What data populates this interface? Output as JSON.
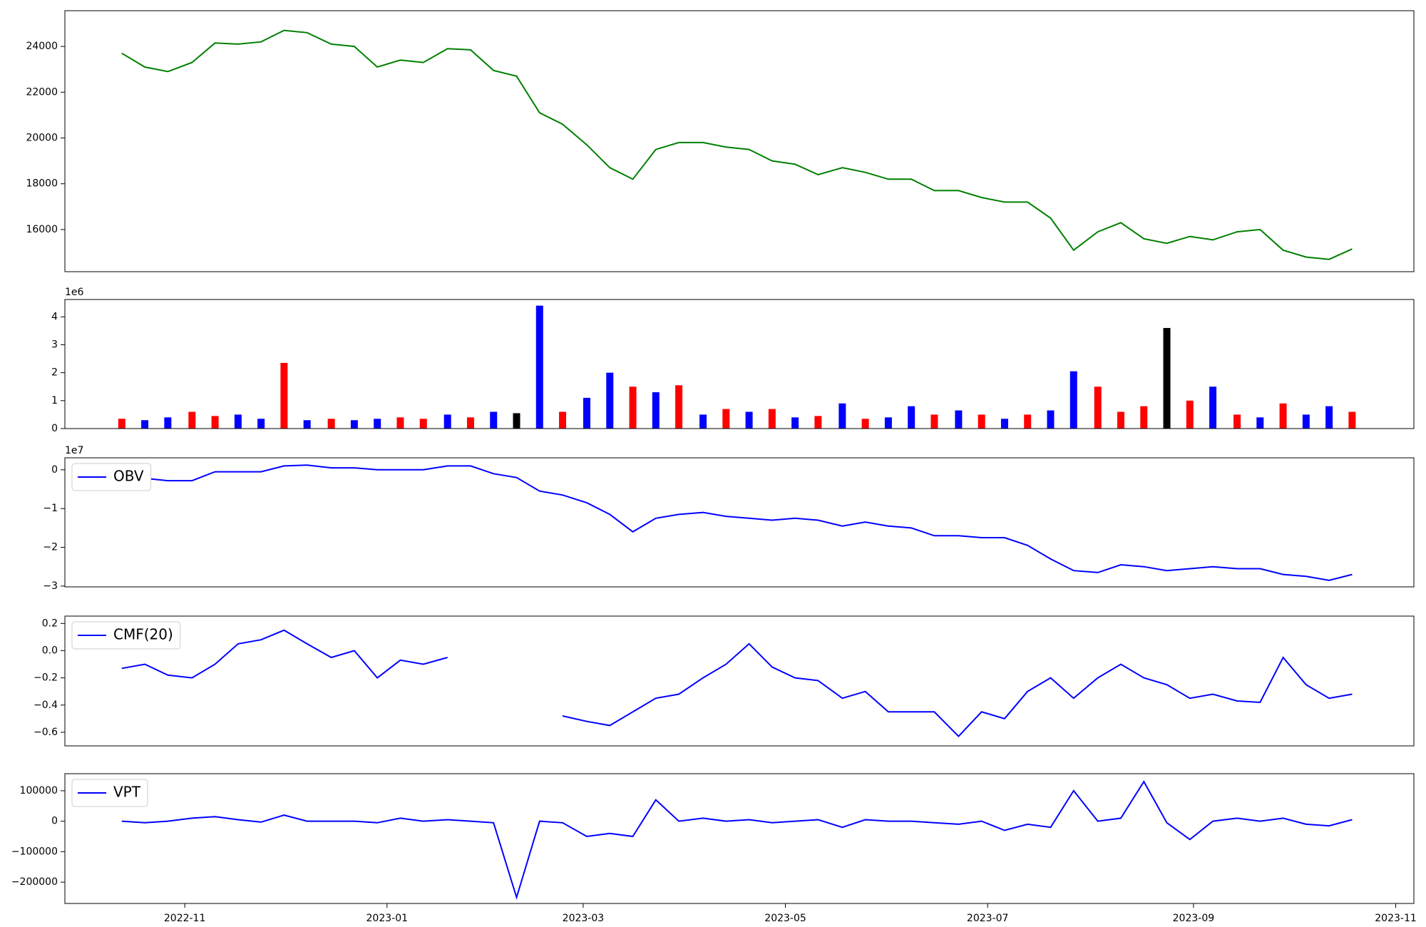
{
  "chart_data": [
    {
      "type": "line",
      "x": [
        2022.781,
        2022.8,
        2022.819,
        2022.839,
        2022.858,
        2022.877,
        2022.896,
        2022.915,
        2022.934,
        2022.954,
        2022.973,
        2022.992,
        2023.011,
        2023.03,
        2023.05,
        2023.069,
        2023.088,
        2023.107,
        2023.126,
        2023.145,
        2023.165,
        2023.184,
        2023.203,
        2023.222,
        2023.241,
        2023.261,
        2023.28,
        2023.299,
        2023.318,
        2023.337,
        2023.356,
        2023.376,
        2023.395,
        2023.414,
        2023.433,
        2023.452,
        2023.472,
        2023.491,
        2023.51,
        2023.529,
        2023.548,
        2023.567,
        2023.587,
        2023.606,
        2023.625,
        2023.644,
        2023.663,
        2023.682,
        2023.702,
        2023.721,
        2023.74,
        2023.759,
        2023.778,
        2023.797
      ],
      "series": [
        {
          "color": "green",
          "values": [
            23700,
            23100,
            22900,
            23300,
            24150,
            24100,
            24200,
            24700,
            24600,
            24100,
            24000,
            23100,
            23400,
            23300,
            23900,
            23850,
            22950,
            22700,
            21100,
            20600,
            19700,
            18700,
            18200,
            19500,
            19800,
            19800,
            19600,
            19500,
            19000,
            18850,
            18400,
            18700,
            18500,
            18200,
            18200,
            17700,
            17700,
            17400,
            17200,
            17200,
            16500,
            15100,
            15900,
            16300,
            15600,
            15400,
            15700,
            15550,
            15900,
            16000,
            15100,
            14800,
            14700,
            15150
          ]
        }
      ],
      "xlim": [
        2022.734,
        2023.848
      ],
      "ylim": [
        14160,
        25560
      ],
      "yticks": [
        16000,
        18000,
        20000,
        22000,
        24000
      ]
    },
    {
      "type": "bar",
      "x": [
        2022.781,
        2022.8,
        2022.819,
        2022.839,
        2022.858,
        2022.877,
        2022.896,
        2022.915,
        2022.934,
        2022.954,
        2022.973,
        2022.992,
        2023.011,
        2023.03,
        2023.05,
        2023.069,
        2023.088,
        2023.107,
        2023.126,
        2023.145,
        2023.165,
        2023.184,
        2023.203,
        2023.222,
        2023.241,
        2023.261,
        2023.28,
        2023.299,
        2023.318,
        2023.337,
        2023.356,
        2023.376,
        2023.395,
        2023.414,
        2023.433,
        2023.452,
        2023.472,
        2023.491,
        2023.51,
        2023.529,
        2023.548,
        2023.567,
        2023.587,
        2023.606,
        2023.625,
        2023.644,
        2023.663,
        2023.682,
        2023.702,
        2023.721,
        2023.74,
        2023.759,
        2023.778,
        2023.797
      ],
      "values": [
        0.35,
        0.3,
        0.4,
        0.6,
        0.45,
        0.5,
        0.35,
        2.35,
        0.3,
        0.35,
        0.3,
        0.35,
        0.4,
        0.35,
        0.5,
        0.4,
        0.6,
        0.55,
        4.4,
        0.6,
        1.1,
        2.0,
        1.5,
        1.3,
        1.55,
        0.5,
        0.7,
        0.6,
        0.7,
        0.4,
        0.45,
        0.9,
        0.35,
        0.4,
        0.8,
        0.5,
        0.65,
        0.5,
        0.35,
        0.5,
        0.65,
        2.05,
        1.5,
        0.6,
        0.8,
        3.6,
        1.0,
        1.5,
        0.5,
        0.4,
        0.9,
        0.5,
        0.8,
        0.6
      ],
      "colors": [
        "red",
        "blue",
        "blue",
        "red",
        "red",
        "blue",
        "blue",
        "red",
        "blue",
        "red",
        "blue",
        "blue",
        "red",
        "red",
        "blue",
        "red",
        "blue",
        "black",
        "blue",
        "red",
        "blue",
        "blue",
        "red",
        "blue",
        "red",
        "blue",
        "red",
        "blue",
        "red",
        "blue",
        "red",
        "blue",
        "red",
        "blue",
        "blue",
        "red",
        "blue",
        "red",
        "blue",
        "red",
        "blue",
        "blue",
        "red",
        "red",
        "red",
        "black",
        "red",
        "blue",
        "red",
        "blue",
        "red",
        "blue",
        "blue",
        "red"
      ],
      "xlim": [
        2022.734,
        2023.848
      ],
      "ylim": [
        0,
        4.62
      ],
      "yticks": [
        0,
        1,
        2,
        3,
        4
      ],
      "y_offset_label": "1e6"
    },
    {
      "type": "line",
      "x": [
        2022.781,
        2022.8,
        2022.819,
        2022.839,
        2022.858,
        2022.877,
        2022.896,
        2022.915,
        2022.934,
        2022.954,
        2022.973,
        2022.992,
        2023.011,
        2023.03,
        2023.05,
        2023.069,
        2023.088,
        2023.107,
        2023.126,
        2023.145,
        2023.165,
        2023.184,
        2023.203,
        2023.222,
        2023.241,
        2023.261,
        2023.28,
        2023.299,
        2023.318,
        2023.337,
        2023.356,
        2023.376,
        2023.395,
        2023.414,
        2023.433,
        2023.452,
        2023.472,
        2023.491,
        2023.51,
        2023.529,
        2023.548,
        2023.567,
        2023.587,
        2023.606,
        2023.625,
        2023.644,
        2023.663,
        2023.682,
        2023.702,
        2023.721,
        2023.74,
        2023.759,
        2023.778,
        2023.797
      ],
      "series": [
        {
          "name": "OBV",
          "color": "blue",
          "values": [
            -0.17,
            -0.22,
            -0.28,
            -0.28,
            -0.05,
            -0.05,
            -0.05,
            0.1,
            0.12,
            0.05,
            0.05,
            0.0,
            0.0,
            0.0,
            0.1,
            0.1,
            -0.1,
            -0.2,
            -0.55,
            -0.65,
            -0.85,
            -1.15,
            -1.6,
            -1.25,
            -1.15,
            -1.1,
            -1.2,
            -1.25,
            -1.3,
            -1.25,
            -1.3,
            -1.45,
            -1.35,
            -1.45,
            -1.5,
            -1.7,
            -1.7,
            -1.75,
            -1.75,
            -1.95,
            -2.3,
            -2.6,
            -2.65,
            -2.45,
            -2.5,
            -2.6,
            -2.55,
            -2.5,
            -2.55,
            -2.55,
            -2.7,
            -2.75,
            -2.85,
            -2.7
          ]
        }
      ],
      "xlim": [
        2022.734,
        2023.848
      ],
      "ylim": [
        -3.02,
        0.31
      ],
      "yticks": [
        {
          "value": -3,
          "label": "−3"
        },
        {
          "value": -2,
          "label": "−2"
        },
        {
          "value": -1,
          "label": "−1"
        },
        0
      ],
      "y_offset_label": "1e7",
      "legend": "upper left"
    },
    {
      "type": "line",
      "x": [
        2022.781,
        2022.8,
        2022.819,
        2022.839,
        2022.858,
        2022.877,
        2022.896,
        2022.915,
        2022.934,
        2022.954,
        2022.973,
        2022.992,
        2023.011,
        2023.03,
        2023.05,
        2023.069,
        2023.088,
        2023.107,
        2023.126,
        2023.145,
        2023.165,
        2023.184,
        2023.203,
        2023.222,
        2023.241,
        2023.261,
        2023.28,
        2023.299,
        2023.318,
        2023.337,
        2023.356,
        2023.376,
        2023.395,
        2023.414,
        2023.433,
        2023.452,
        2023.472,
        2023.491,
        2023.51,
        2023.529,
        2023.548,
        2023.567,
        2023.587,
        2023.606,
        2023.625,
        2023.644,
        2023.663,
        2023.682,
        2023.702,
        2023.721,
        2023.74,
        2023.759,
        2023.778,
        2023.797
      ],
      "series": [
        {
          "name": "CMF(20)",
          "color": "blue",
          "values": [
            -0.13,
            -0.1,
            -0.18,
            -0.2,
            -0.1,
            0.05,
            0.08,
            0.15,
            0.05,
            -0.05,
            0.0,
            -0.2,
            -0.07,
            -0.1,
            -0.05,
            null,
            null,
            null,
            null,
            -0.48,
            -0.52,
            -0.55,
            -0.45,
            -0.35,
            -0.32,
            -0.2,
            -0.1,
            0.05,
            -0.12,
            -0.2,
            -0.22,
            -0.35,
            -0.3,
            -0.45,
            -0.45,
            -0.45,
            -0.63,
            -0.45,
            -0.5,
            -0.3,
            -0.2,
            -0.35,
            -0.2,
            -0.1,
            -0.2,
            -0.25,
            -0.35,
            -0.32,
            -0.37,
            -0.38,
            -0.05,
            -0.25,
            -0.35,
            -0.32
          ]
        }
      ],
      "xlim": [
        2022.734,
        2023.848
      ],
      "ylim": [
        -0.7,
        0.254
      ],
      "yticks": [
        {
          "value": -0.6,
          "label": "−0.6"
        },
        {
          "value": -0.4,
          "label": "−0.4"
        },
        {
          "value": -0.2,
          "label": "−0.2"
        },
        {
          "value": 0,
          "label": "0.0"
        },
        0.2
      ],
      "legend": "upper left"
    },
    {
      "type": "line",
      "x": [
        2022.781,
        2022.8,
        2022.819,
        2022.839,
        2022.858,
        2022.877,
        2022.896,
        2022.915,
        2022.934,
        2022.954,
        2022.973,
        2022.992,
        2023.011,
        2023.03,
        2023.05,
        2023.069,
        2023.088,
        2023.107,
        2023.126,
        2023.145,
        2023.165,
        2023.184,
        2023.203,
        2023.222,
        2023.241,
        2023.261,
        2023.28,
        2023.299,
        2023.318,
        2023.337,
        2023.356,
        2023.376,
        2023.395,
        2023.414,
        2023.433,
        2023.452,
        2023.472,
        2023.491,
        2023.51,
        2023.529,
        2023.548,
        2023.567,
        2023.587,
        2023.606,
        2023.625,
        2023.644,
        2023.663,
        2023.682,
        2023.702,
        2023.721,
        2023.74,
        2023.759,
        2023.778,
        2023.797
      ],
      "series": [
        {
          "name": "VPT",
          "color": "blue",
          "values": [
            0,
            -5000,
            0,
            10000,
            15000,
            5000,
            -3000,
            20000,
            0,
            0,
            0,
            -5000,
            10000,
            0,
            5000,
            0,
            -5000,
            -250000,
            0,
            -5000,
            -50000,
            -40000,
            -50000,
            70000,
            0,
            10000,
            0,
            5000,
            -5000,
            0,
            5000,
            -20000,
            5000,
            0,
            0,
            -5000,
            -10000,
            0,
            -30000,
            -10000,
            -20000,
            100000,
            0,
            10000,
            130000,
            -5000,
            -60000,
            0,
            10000,
            0,
            10000,
            -10000,
            -15000,
            5000
          ]
        }
      ],
      "xlim": [
        2022.734,
        2023.848
      ],
      "ylim": [
        -270000,
        156000
      ],
      "yticks": [
        {
          "value": -200000,
          "label": "−200000"
        },
        {
          "value": -100000,
          "label": "−100000"
        },
        0,
        100000
      ],
      "xticks": [
        {
          "value": 2022.833,
          "label": "2022-11"
        },
        {
          "value": 2023.0,
          "label": "2023-01"
        },
        {
          "value": 2023.162,
          "label": "2023-03"
        },
        {
          "value": 2023.329,
          "label": "2023-05"
        },
        {
          "value": 2023.496,
          "label": "2023-07"
        },
        {
          "value": 2023.666,
          "label": "2023-09"
        },
        {
          "value": 2023.833,
          "label": "2023-11"
        }
      ],
      "legend": "upper left"
    }
  ]
}
